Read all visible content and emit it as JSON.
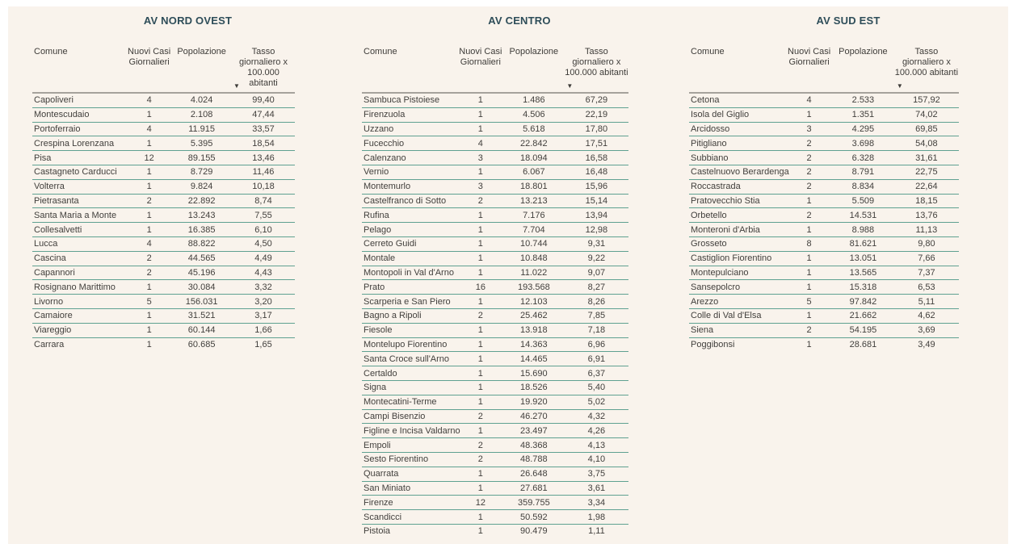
{
  "style": {
    "page_background": "#ffffff",
    "panel_background": "#f9f3ec",
    "title_color": "#2e4d59",
    "text_color": "#413f3c",
    "row_divider_color": "#5fa191",
    "header_divider_color": "#a6a29c"
  },
  "chart_data": [
    {
      "type": "table",
      "title": "AV NORD OVEST",
      "columns": [
        "Comune",
        "Nuovi Casi Giornalieri",
        "Popolazione",
        "Tasso giornaliero x 100.000 abitanti"
      ],
      "sort": {
        "column": "Tasso giornaliero x 100.000 abitanti",
        "direction": "desc"
      },
      "rows": [
        [
          "Capoliveri",
          "4",
          "4.024",
          "99,40"
        ],
        [
          "Montescudaio",
          "1",
          "2.108",
          "47,44"
        ],
        [
          "Portoferraio",
          "4",
          "11.915",
          "33,57"
        ],
        [
          "Crespina Lorenzana",
          "1",
          "5.395",
          "18,54"
        ],
        [
          "Pisa",
          "12",
          "89.155",
          "13,46"
        ],
        [
          "Castagneto Carducci",
          "1",
          "8.729",
          "11,46"
        ],
        [
          "Volterra",
          "1",
          "9.824",
          "10,18"
        ],
        [
          "Pietrasanta",
          "2",
          "22.892",
          "8,74"
        ],
        [
          "Santa Maria a Monte",
          "1",
          "13.243",
          "7,55"
        ],
        [
          "Collesalvetti",
          "1",
          "16.385",
          "6,10"
        ],
        [
          "Lucca",
          "4",
          "88.822",
          "4,50"
        ],
        [
          "Cascina",
          "2",
          "44.565",
          "4,49"
        ],
        [
          "Capannori",
          "2",
          "45.196",
          "4,43"
        ],
        [
          "Rosignano Marittimo",
          "1",
          "30.084",
          "3,32"
        ],
        [
          "Livorno",
          "5",
          "156.031",
          "3,20"
        ],
        [
          "Camaiore",
          "1",
          "31.521",
          "3,17"
        ],
        [
          "Viareggio",
          "1",
          "60.144",
          "1,66"
        ],
        [
          "Carrara",
          "1",
          "60.685",
          "1,65"
        ]
      ]
    },
    {
      "type": "table",
      "title": "AV CENTRO",
      "columns": [
        "Comune",
        "Nuovi Casi Giornalieri",
        "Popolazione",
        "Tasso giornaliero x 100.000 abitanti"
      ],
      "sort": {
        "column": "Tasso giornaliero x 100.000 abitanti",
        "direction": "desc"
      },
      "rows": [
        [
          "Sambuca Pistoiese",
          "1",
          "1.486",
          "67,29"
        ],
        [
          "Firenzuola",
          "1",
          "4.506",
          "22,19"
        ],
        [
          "Uzzano",
          "1",
          "5.618",
          "17,80"
        ],
        [
          "Fucecchio",
          "4",
          "22.842",
          "17,51"
        ],
        [
          "Calenzano",
          "3",
          "18.094",
          "16,58"
        ],
        [
          "Vernio",
          "1",
          "6.067",
          "16,48"
        ],
        [
          "Montemurlo",
          "3",
          "18.801",
          "15,96"
        ],
        [
          "Castelfranco di Sotto",
          "2",
          "13.213",
          "15,14"
        ],
        [
          "Rufina",
          "1",
          "7.176",
          "13,94"
        ],
        [
          "Pelago",
          "1",
          "7.704",
          "12,98"
        ],
        [
          "Cerreto Guidi",
          "1",
          "10.744",
          "9,31"
        ],
        [
          "Montale",
          "1",
          "10.848",
          "9,22"
        ],
        [
          "Montopoli in Val d'Arno",
          "1",
          "11.022",
          "9,07"
        ],
        [
          "Prato",
          "16",
          "193.568",
          "8,27"
        ],
        [
          "Scarperia e San Piero",
          "1",
          "12.103",
          "8,26"
        ],
        [
          "Bagno a Ripoli",
          "2",
          "25.462",
          "7,85"
        ],
        [
          "Fiesole",
          "1",
          "13.918",
          "7,18"
        ],
        [
          "Montelupo Fiorentino",
          "1",
          "14.363",
          "6,96"
        ],
        [
          "Santa Croce sull'Arno",
          "1",
          "14.465",
          "6,91"
        ],
        [
          "Certaldo",
          "1",
          "15.690",
          "6,37"
        ],
        [
          "Signa",
          "1",
          "18.526",
          "5,40"
        ],
        [
          "Montecatini-Terme",
          "1",
          "19.920",
          "5,02"
        ],
        [
          "Campi Bisenzio",
          "2",
          "46.270",
          "4,32"
        ],
        [
          "Figline e Incisa Valdarno",
          "1",
          "23.497",
          "4,26"
        ],
        [
          "Empoli",
          "2",
          "48.368",
          "4,13"
        ],
        [
          "Sesto Fiorentino",
          "2",
          "48.788",
          "4,10"
        ],
        [
          "Quarrata",
          "1",
          "26.648",
          "3,75"
        ],
        [
          "San Miniato",
          "1",
          "27.681",
          "3,61"
        ],
        [
          "Firenze",
          "12",
          "359.755",
          "3,34"
        ],
        [
          "Scandicci",
          "1",
          "50.592",
          "1,98"
        ],
        [
          "Pistoia",
          "1",
          "90.479",
          "1,11"
        ]
      ]
    },
    {
      "type": "table",
      "title": "AV SUD EST",
      "columns": [
        "Comune",
        "Nuovi Casi Giornalieri",
        "Popolazione",
        "Tasso giornaliero x 100.000 abitanti"
      ],
      "sort": {
        "column": "Tasso giornaliero x 100.000 abitanti",
        "direction": "desc"
      },
      "rows": [
        [
          "Cetona",
          "4",
          "2.533",
          "157,92"
        ],
        [
          "Isola del Giglio",
          "1",
          "1.351",
          "74,02"
        ],
        [
          "Arcidosso",
          "3",
          "4.295",
          "69,85"
        ],
        [
          "Pitigliano",
          "2",
          "3.698",
          "54,08"
        ],
        [
          "Subbiano",
          "2",
          "6.328",
          "31,61"
        ],
        [
          "Castelnuovo Berardenga",
          "2",
          "8.791",
          "22,75"
        ],
        [
          "Roccastrada",
          "2",
          "8.834",
          "22,64"
        ],
        [
          "Pratovecchio Stia",
          "1",
          "5.509",
          "18,15"
        ],
        [
          "Orbetello",
          "2",
          "14.531",
          "13,76"
        ],
        [
          "Monteroni d'Arbia",
          "1",
          "8.988",
          "11,13"
        ],
        [
          "Grosseto",
          "8",
          "81.621",
          "9,80"
        ],
        [
          "Castiglion Fiorentino",
          "1",
          "13.051",
          "7,66"
        ],
        [
          "Montepulciano",
          "1",
          "13.565",
          "7,37"
        ],
        [
          "Sansepolcro",
          "1",
          "15.318",
          "6,53"
        ],
        [
          "Arezzo",
          "5",
          "97.842",
          "5,11"
        ],
        [
          "Colle di Val d'Elsa",
          "1",
          "21.662",
          "4,62"
        ],
        [
          "Siena",
          "2",
          "54.195",
          "3,69"
        ],
        [
          "Poggibonsi",
          "1",
          "28.681",
          "3,49"
        ]
      ]
    }
  ]
}
